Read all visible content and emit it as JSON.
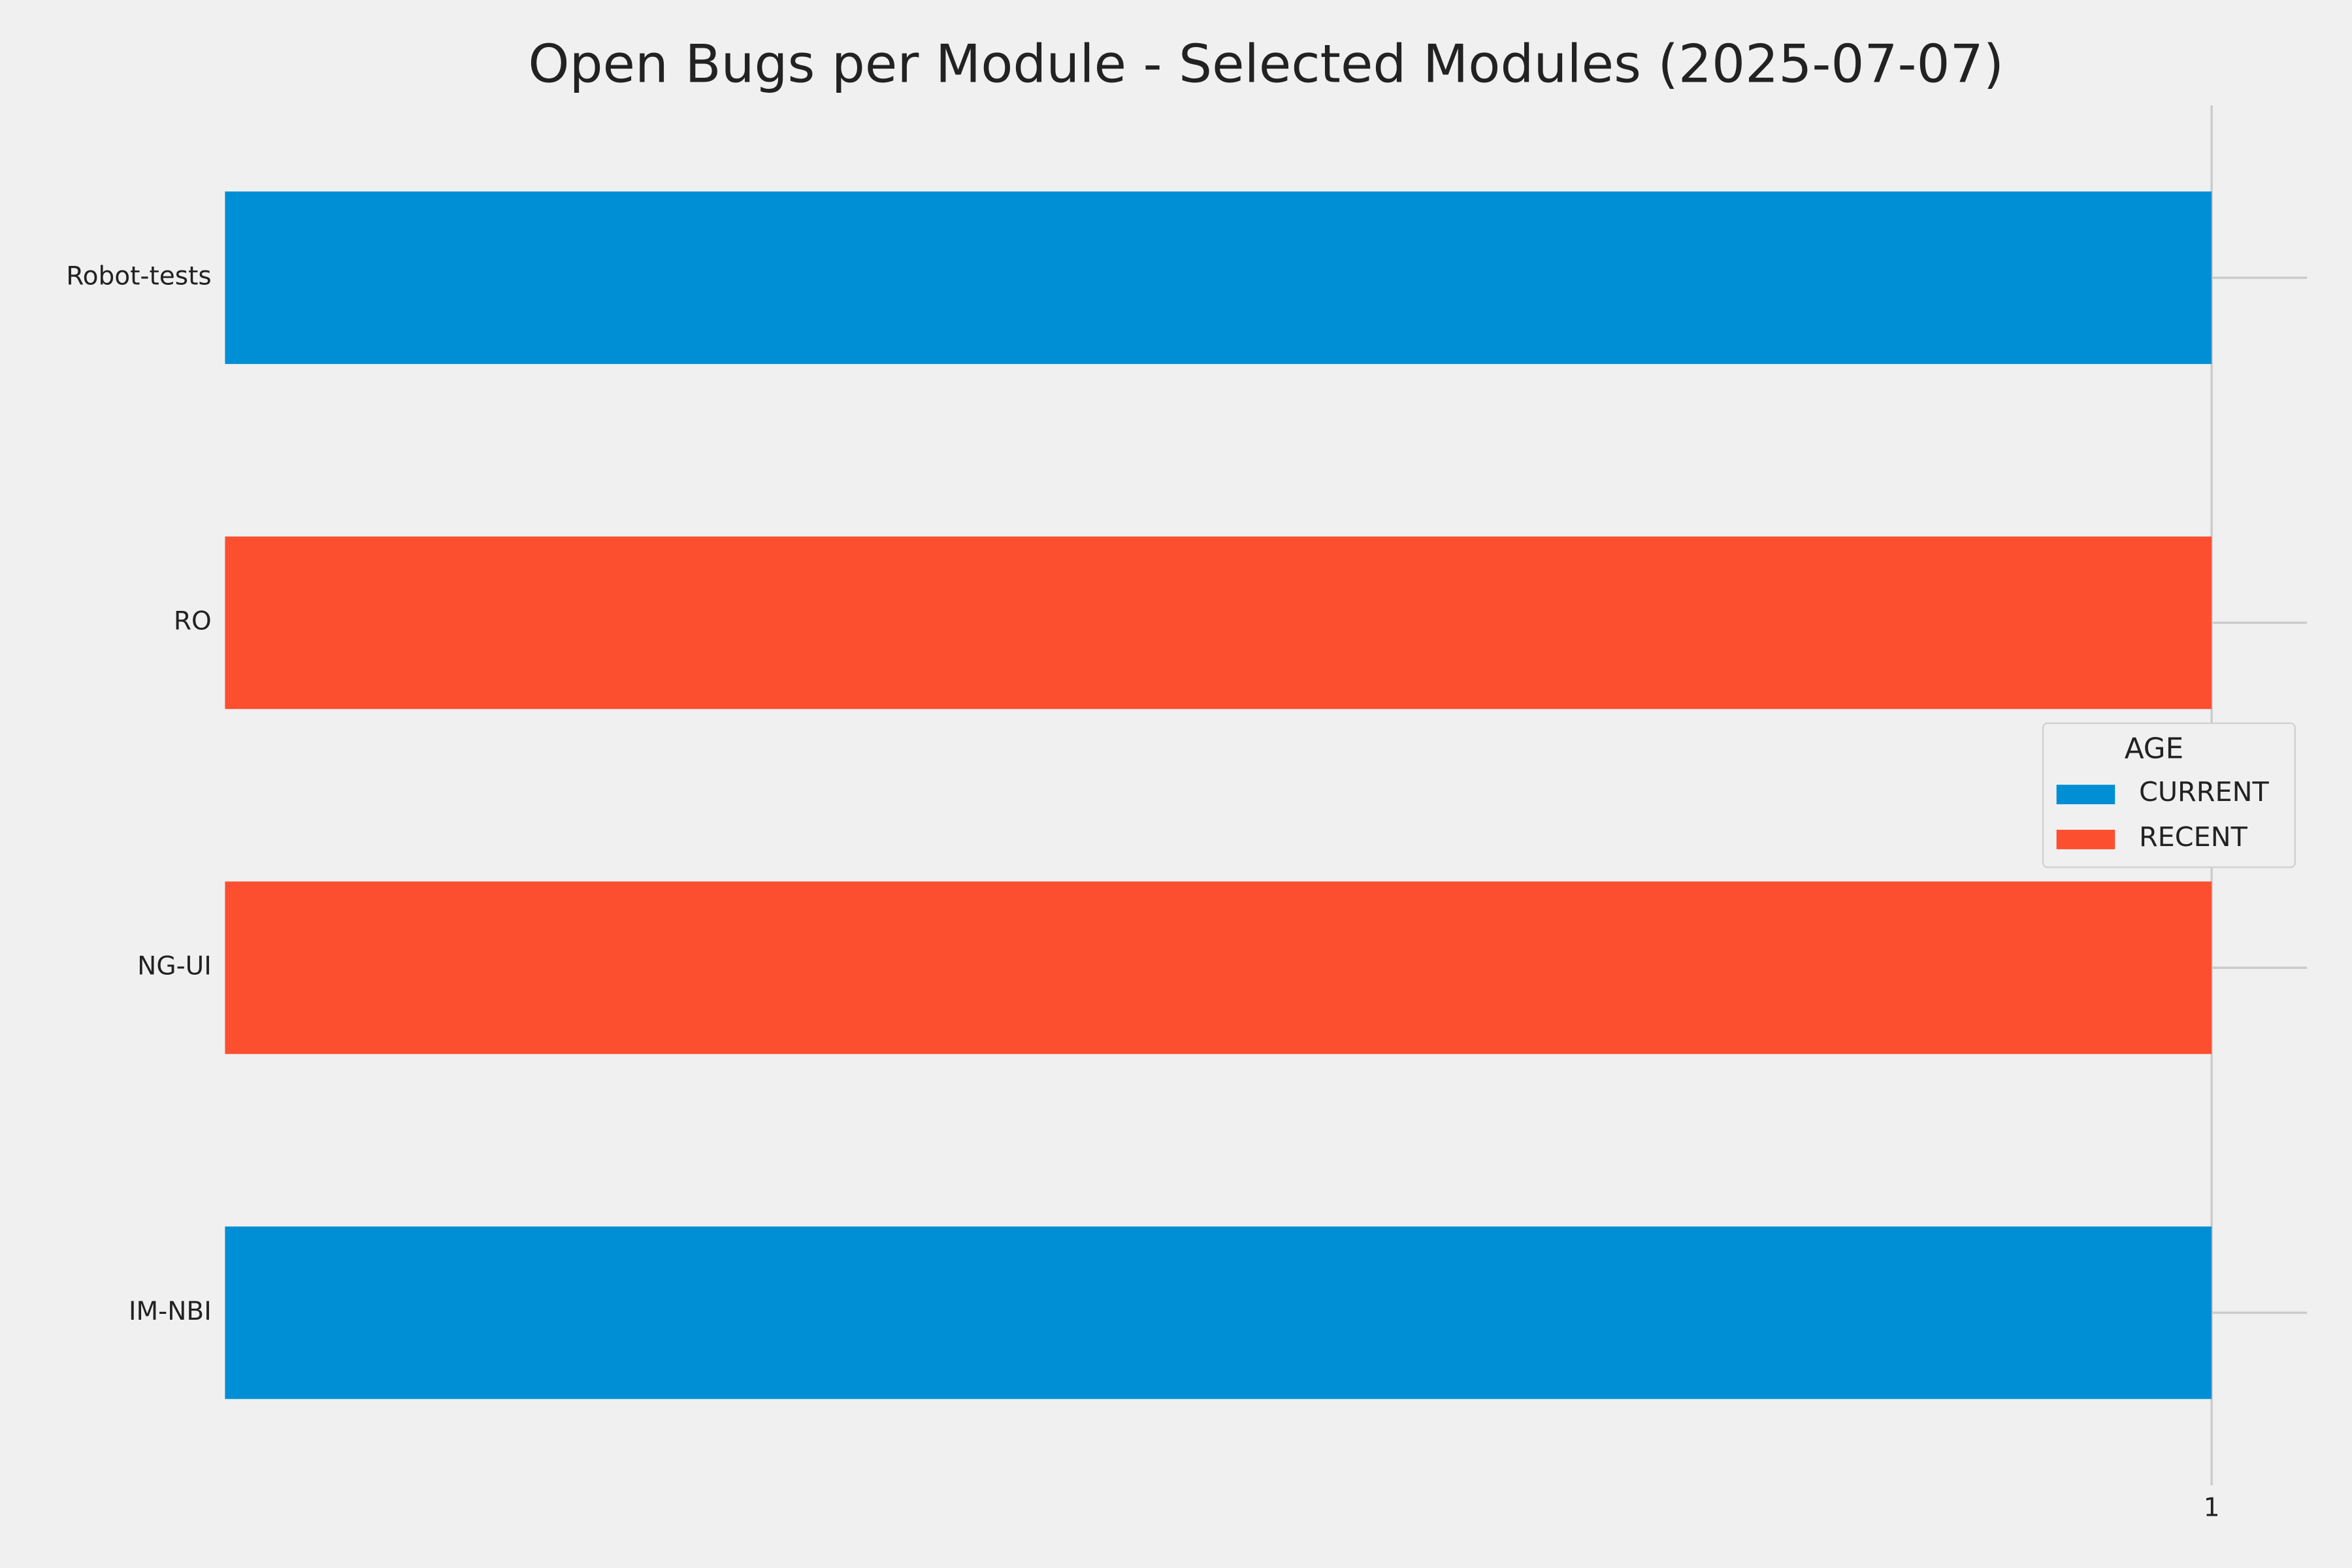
{
  "chart_data": {
    "type": "barh_stacked",
    "title": "Open Bugs per Module - Selected Modules (2025-07-07)",
    "categories": [
      "Robot-tests",
      "RO",
      "NG-UI",
      "IM-NBI"
    ],
    "series": [
      {
        "name": "CURRENT",
        "color": "#008fd5",
        "values": [
          1,
          0,
          0,
          1
        ]
      },
      {
        "name": "RECENT",
        "color": "#fc4f30",
        "values": [
          0,
          1,
          1,
          0
        ]
      }
    ],
    "xlim": [
      0,
      1.048
    ],
    "xticks": [
      1
    ],
    "grid": true,
    "legend": {
      "title": "AGE",
      "loc": "center right"
    }
  }
}
